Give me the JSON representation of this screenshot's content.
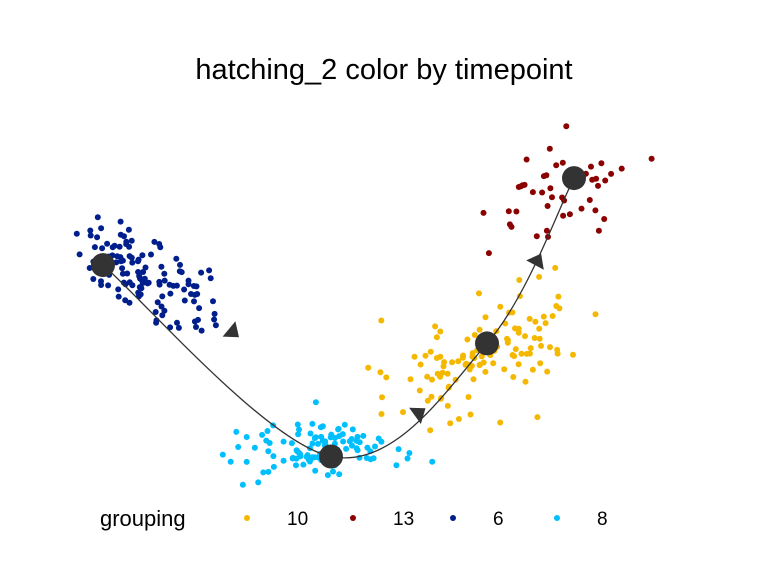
{
  "chart_data": {
    "type": "scatter",
    "title": "hatching_2 color by timepoint",
    "xlabel": "",
    "ylabel": "",
    "grid": false,
    "axes_visible": false,
    "legend": {
      "title": "grouping",
      "placement": "bottom",
      "entries": [
        {
          "label": "10",
          "color": "#F5B800"
        },
        {
          "label": "13",
          "color": "#8B0000"
        },
        {
          "label": "6",
          "color": "#001E8C"
        },
        {
          "label": "8",
          "color": "#00BFFF"
        }
      ]
    },
    "series": [
      {
        "name": "6",
        "color": "#001E8C",
        "centers": [
          [
            -4.5,
            2.1
          ],
          [
            -2.6,
            0.7
          ]
        ]
      },
      {
        "name": "8",
        "color": "#00BFFF",
        "centers": [
          [
            -1.2,
            -1.7
          ],
          [
            0.2,
            -1.6
          ]
        ]
      },
      {
        "name": "10",
        "color": "#F5B800",
        "centers": [
          [
            1.2,
            -0.6
          ],
          [
            2.9,
            0.6
          ]
        ]
      },
      {
        "name": "13",
        "color": "#8B0000",
        "centers": [
          [
            2.8,
            2.3
          ],
          [
            4.1,
            3.3
          ]
        ]
      }
    ],
    "trajectory": {
      "color": "#333333",
      "nodes": [
        [
          -4.2,
          1.55
        ],
        [
          -0.4,
          -1.75
        ],
        [
          2.2,
          0.2
        ],
        [
          3.65,
          3.05
        ]
      ],
      "arrows": [
        [
          -2.1,
          0.45
        ],
        [
          1.0,
          -1.05
        ],
        [
          3.0,
          1.55
        ]
      ]
    }
  }
}
